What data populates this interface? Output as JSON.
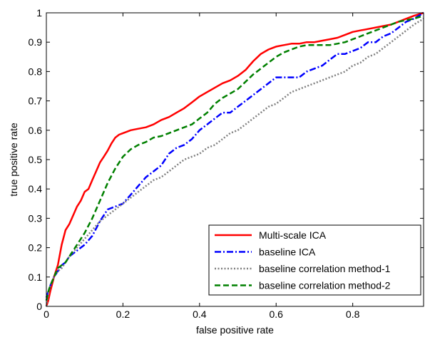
{
  "chart_data": {
    "type": "line",
    "title": "",
    "xlabel": "false positive rate",
    "ylabel": "true positive rate",
    "xlim": [
      0,
      0.985
    ],
    "ylim": [
      0,
      1
    ],
    "xticks": [
      0,
      0.2,
      0.4,
      0.6,
      0.8
    ],
    "xtick_labels": [
      "0",
      "0.2",
      "0.4",
      "0.6",
      "0.8"
    ],
    "yticks": [
      0,
      0.1,
      0.2,
      0.3,
      0.4,
      0.5,
      0.6,
      0.7,
      0.8,
      0.9,
      1
    ],
    "ytick_labels": [
      "0",
      "0.1",
      "0.2",
      "0.3",
      "0.4",
      "0.5",
      "0.6",
      "0.7",
      "0.8",
      "0.9",
      "1"
    ],
    "grid": false,
    "legend_position": "bottom-right",
    "series": [
      {
        "name": "Multi-scale ICA",
        "color": "#ff0000",
        "dash": "solid",
        "x": [
          0,
          0.005,
          0.01,
          0.02,
          0.03,
          0.04,
          0.05,
          0.06,
          0.07,
          0.08,
          0.09,
          0.1,
          0.11,
          0.12,
          0.13,
          0.14,
          0.15,
          0.16,
          0.17,
          0.18,
          0.19,
          0.2,
          0.21,
          0.22,
          0.24,
          0.26,
          0.28,
          0.3,
          0.32,
          0.34,
          0.36,
          0.38,
          0.4,
          0.42,
          0.44,
          0.46,
          0.48,
          0.5,
          0.52,
          0.54,
          0.56,
          0.58,
          0.6,
          0.62,
          0.64,
          0.66,
          0.68,
          0.7,
          0.72,
          0.74,
          0.76,
          0.78,
          0.8,
          0.82,
          0.84,
          0.86,
          0.88,
          0.9,
          0.92,
          0.94,
          0.96,
          0.985
        ],
        "y": [
          0,
          0.02,
          0.05,
          0.1,
          0.14,
          0.21,
          0.26,
          0.28,
          0.31,
          0.34,
          0.36,
          0.39,
          0.4,
          0.43,
          0.46,
          0.49,
          0.51,
          0.53,
          0.555,
          0.575,
          0.585,
          0.59,
          0.595,
          0.6,
          0.605,
          0.61,
          0.62,
          0.635,
          0.645,
          0.66,
          0.675,
          0.695,
          0.715,
          0.73,
          0.745,
          0.76,
          0.77,
          0.785,
          0.805,
          0.835,
          0.86,
          0.875,
          0.885,
          0.89,
          0.895,
          0.895,
          0.9,
          0.9,
          0.905,
          0.91,
          0.915,
          0.925,
          0.935,
          0.94,
          0.945,
          0.95,
          0.955,
          0.96,
          0.97,
          0.98,
          0.99,
          1.0
        ]
      },
      {
        "name": "baseline ICA",
        "color": "#0000ff",
        "dash": "dashdot",
        "x": [
          0,
          0.005,
          0.01,
          0.02,
          0.03,
          0.04,
          0.05,
          0.06,
          0.07,
          0.08,
          0.09,
          0.1,
          0.12,
          0.14,
          0.16,
          0.18,
          0.2,
          0.22,
          0.24,
          0.26,
          0.28,
          0.3,
          0.32,
          0.34,
          0.36,
          0.38,
          0.4,
          0.42,
          0.44,
          0.46,
          0.48,
          0.5,
          0.52,
          0.54,
          0.56,
          0.58,
          0.6,
          0.62,
          0.64,
          0.66,
          0.68,
          0.7,
          0.72,
          0.74,
          0.76,
          0.78,
          0.8,
          0.82,
          0.84,
          0.86,
          0.88,
          0.9,
          0.92,
          0.94,
          0.96,
          0.985
        ],
        "y": [
          0.03,
          0.05,
          0.07,
          0.1,
          0.12,
          0.14,
          0.15,
          0.17,
          0.18,
          0.19,
          0.2,
          0.21,
          0.24,
          0.29,
          0.33,
          0.34,
          0.35,
          0.38,
          0.41,
          0.44,
          0.46,
          0.48,
          0.52,
          0.54,
          0.55,
          0.57,
          0.6,
          0.62,
          0.64,
          0.66,
          0.66,
          0.68,
          0.7,
          0.72,
          0.74,
          0.76,
          0.78,
          0.78,
          0.78,
          0.78,
          0.8,
          0.81,
          0.82,
          0.84,
          0.86,
          0.86,
          0.87,
          0.88,
          0.9,
          0.9,
          0.92,
          0.93,
          0.95,
          0.97,
          0.98,
          1.0
        ]
      },
      {
        "name": "baseline correlation method-1",
        "color": "#808080",
        "dash": "dotted",
        "x": [
          0,
          0.005,
          0.01,
          0.02,
          0.03,
          0.04,
          0.05,
          0.06,
          0.08,
          0.1,
          0.12,
          0.14,
          0.16,
          0.18,
          0.2,
          0.22,
          0.24,
          0.26,
          0.28,
          0.3,
          0.32,
          0.34,
          0.36,
          0.38,
          0.4,
          0.42,
          0.44,
          0.46,
          0.48,
          0.5,
          0.52,
          0.54,
          0.56,
          0.58,
          0.6,
          0.62,
          0.64,
          0.66,
          0.68,
          0.7,
          0.72,
          0.74,
          0.76,
          0.78,
          0.8,
          0.82,
          0.84,
          0.86,
          0.88,
          0.9,
          0.92,
          0.94,
          0.96,
          0.985
        ],
        "y": [
          0,
          0.04,
          0.07,
          0.1,
          0.12,
          0.13,
          0.15,
          0.17,
          0.2,
          0.23,
          0.26,
          0.29,
          0.31,
          0.33,
          0.35,
          0.37,
          0.39,
          0.41,
          0.43,
          0.44,
          0.46,
          0.48,
          0.5,
          0.51,
          0.52,
          0.54,
          0.55,
          0.57,
          0.59,
          0.6,
          0.62,
          0.64,
          0.66,
          0.68,
          0.69,
          0.71,
          0.73,
          0.74,
          0.75,
          0.76,
          0.77,
          0.78,
          0.79,
          0.8,
          0.82,
          0.83,
          0.85,
          0.86,
          0.88,
          0.9,
          0.92,
          0.94,
          0.96,
          0.98
        ]
      },
      {
        "name": "baseline correlation method-2",
        "color": "#008000",
        "dash": "dashed",
        "x": [
          0,
          0.005,
          0.01,
          0.02,
          0.03,
          0.04,
          0.05,
          0.06,
          0.08,
          0.1,
          0.12,
          0.14,
          0.16,
          0.18,
          0.2,
          0.22,
          0.24,
          0.26,
          0.28,
          0.3,
          0.32,
          0.34,
          0.36,
          0.38,
          0.4,
          0.42,
          0.44,
          0.46,
          0.48,
          0.5,
          0.52,
          0.54,
          0.56,
          0.58,
          0.6,
          0.62,
          0.64,
          0.66,
          0.68,
          0.7,
          0.72,
          0.74,
          0.76,
          0.78,
          0.8,
          0.82,
          0.84,
          0.86,
          0.88,
          0.9,
          0.92,
          0.94,
          0.96,
          0.985
        ],
        "y": [
          0.02,
          0.05,
          0.07,
          0.1,
          0.13,
          0.14,
          0.15,
          0.17,
          0.21,
          0.25,
          0.3,
          0.36,
          0.42,
          0.47,
          0.51,
          0.535,
          0.55,
          0.56,
          0.575,
          0.58,
          0.59,
          0.6,
          0.61,
          0.62,
          0.64,
          0.66,
          0.69,
          0.71,
          0.725,
          0.74,
          0.765,
          0.79,
          0.81,
          0.83,
          0.85,
          0.865,
          0.875,
          0.885,
          0.89,
          0.89,
          0.89,
          0.89,
          0.895,
          0.9,
          0.91,
          0.92,
          0.93,
          0.94,
          0.95,
          0.96,
          0.97,
          0.975,
          0.98,
          0.99
        ]
      }
    ]
  }
}
